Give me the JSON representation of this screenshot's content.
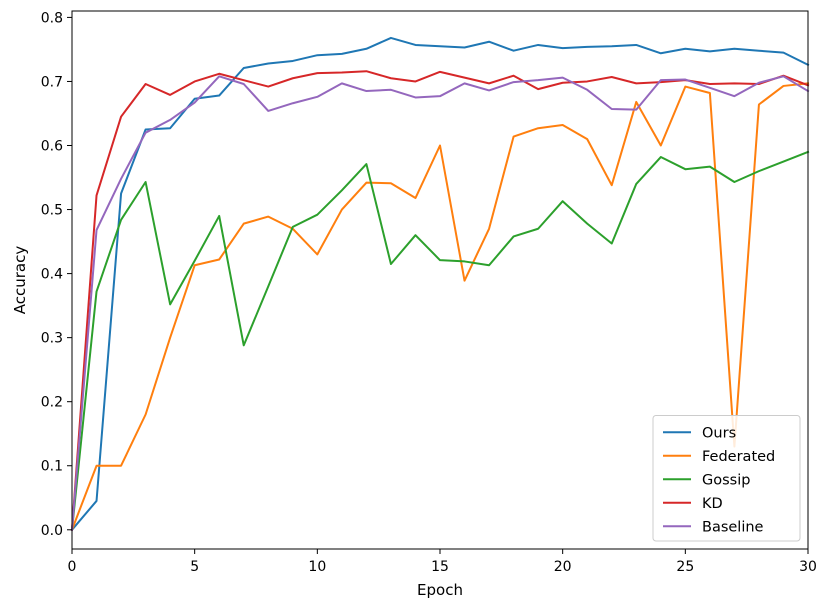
{
  "chart_data": {
    "type": "line",
    "title": "",
    "xlabel": "Epoch",
    "ylabel": "Accuracy",
    "xlim": [
      0,
      30
    ],
    "ylim": [
      -0.03,
      0.81
    ],
    "xticks": [
      0,
      5,
      10,
      15,
      20,
      25,
      30
    ],
    "yticks": [
      0.0,
      0.1,
      0.2,
      0.3,
      0.4,
      0.5,
      0.6,
      0.7,
      0.8
    ],
    "xtick_labels": [
      "0",
      "5",
      "10",
      "15",
      "20",
      "25",
      "30"
    ],
    "ytick_labels": [
      "0.0",
      "0.1",
      "0.2",
      "0.3",
      "0.4",
      "0.5",
      "0.6",
      "0.7",
      "0.8"
    ],
    "grid": false,
    "legend_position": "bottom-right",
    "x": [
      0,
      1,
      2,
      3,
      4,
      5,
      6,
      7,
      8,
      9,
      10,
      11,
      12,
      13,
      14,
      15,
      16,
      17,
      18,
      19,
      20,
      21,
      22,
      23,
      24,
      25,
      26,
      27,
      28,
      29,
      30
    ],
    "series": [
      {
        "name": "Ours",
        "color": "#1f77b4",
        "values": [
          0.0,
          0.045,
          0.525,
          0.625,
          0.627,
          0.673,
          0.678,
          0.721,
          0.728,
          0.732,
          0.741,
          0.743,
          0.751,
          0.768,
          0.757,
          0.755,
          0.753,
          0.762,
          0.748,
          0.757,
          0.752,
          0.754,
          0.755,
          0.757,
          0.744,
          0.751,
          0.747,
          0.751,
          0.748,
          0.745,
          0.726
        ]
      },
      {
        "name": "Federated",
        "color": "#ff7f0e",
        "values": [
          0.0,
          0.1,
          0.1,
          0.18,
          0.3,
          0.413,
          0.422,
          0.478,
          0.489,
          0.47,
          0.43,
          0.5,
          0.542,
          0.541,
          0.518,
          0.6,
          0.389,
          0.47,
          0.614,
          0.627,
          0.632,
          0.61,
          0.538,
          0.668,
          0.6,
          0.692,
          0.682,
          0.13,
          0.664,
          0.693,
          0.697
        ]
      },
      {
        "name": "Gossip",
        "color": "#2ca02c",
        "values": [
          0.0,
          0.372,
          0.484,
          0.543,
          0.352,
          0.42,
          0.49,
          0.288,
          0.38,
          0.473,
          0.492,
          0.53,
          0.571,
          0.415,
          0.46,
          0.421,
          0.419,
          0.413,
          0.458,
          0.47,
          0.513,
          0.478,
          0.447,
          0.54,
          0.582,
          0.563,
          0.567,
          0.543,
          0.56,
          0.575,
          0.59
        ]
      },
      {
        "name": "KD",
        "color": "#d62728",
        "values": [
          0.0,
          0.522,
          0.645,
          0.696,
          0.679,
          0.7,
          0.712,
          0.702,
          0.692,
          0.705,
          0.713,
          0.714,
          0.716,
          0.705,
          0.7,
          0.715,
          0.706,
          0.697,
          0.709,
          0.688,
          0.698,
          0.7,
          0.707,
          0.697,
          0.699,
          0.702,
          0.696,
          0.697,
          0.696,
          0.709,
          0.694
        ]
      },
      {
        "name": "Baseline",
        "color": "#9467bd",
        "values": [
          0.0,
          0.468,
          0.548,
          0.62,
          0.64,
          0.667,
          0.708,
          0.696,
          0.654,
          0.666,
          0.676,
          0.697,
          0.685,
          0.687,
          0.675,
          0.677,
          0.697,
          0.686,
          0.699,
          0.702,
          0.706,
          0.687,
          0.657,
          0.656,
          0.702,
          0.703,
          0.69,
          0.677,
          0.698,
          0.708,
          0.685
        ]
      }
    ]
  }
}
